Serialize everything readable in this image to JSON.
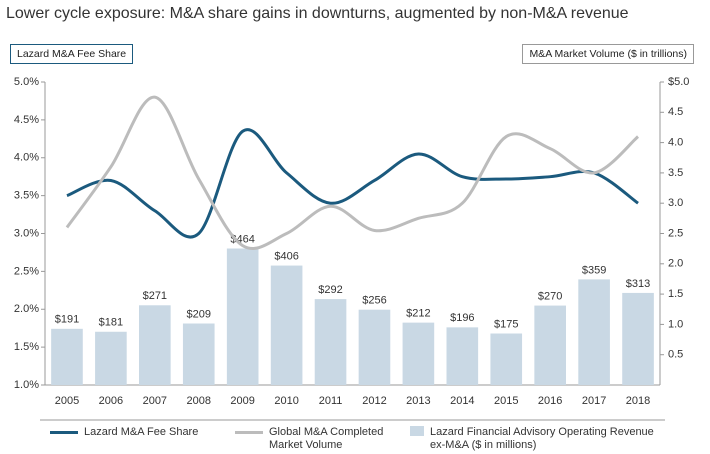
{
  "chart_data": {
    "type": "combo",
    "title": "Lower cycle exposure: M&A share gains in downturns, augmented by non-M&A revenue",
    "left_axis_box": "Lazard M&A Fee Share",
    "right_axis_box": "M&A Market Volume ($ in trillions)",
    "categories": [
      "2005",
      "2006",
      "2007",
      "2008",
      "2009",
      "2010",
      "2011",
      "2012",
      "2013",
      "2014",
      "2015",
      "2016",
      "2017",
      "2018"
    ],
    "ylim": [
      1.0,
      5.0
    ],
    "yticks": [
      {
        "value": 1.0,
        "label": "1.0%"
      },
      {
        "value": 1.5,
        "label": "1.5%"
      },
      {
        "value": 2.0,
        "label": "2.0%"
      },
      {
        "value": 2.5,
        "label": "2.5%"
      },
      {
        "value": 3.0,
        "label": "3.0%"
      },
      {
        "value": 3.5,
        "label": "3.5%"
      },
      {
        "value": 4.0,
        "label": "4.0%"
      },
      {
        "value": 4.5,
        "label": "4.5%"
      },
      {
        "value": 5.0,
        "label": "5.0%"
      }
    ],
    "y2lim": [
      0,
      5.0
    ],
    "y2ticks": [
      {
        "value": 0.5,
        "label": "0.5"
      },
      {
        "value": 1.0,
        "label": "1.0"
      },
      {
        "value": 1.5,
        "label": "1.5"
      },
      {
        "value": 2.0,
        "label": "2.0"
      },
      {
        "value": 2.5,
        "label": "2.5"
      },
      {
        "value": 3.0,
        "label": "3.0"
      },
      {
        "value": 3.5,
        "label": "3.5"
      },
      {
        "value": 4.0,
        "label": "4.0"
      },
      {
        "value": 4.5,
        "label": "4.5"
      },
      {
        "value": 5.0,
        "label": "$5.0"
      }
    ],
    "bar_ylim": [
      0,
      1030
    ],
    "series": [
      {
        "name": "Lazard Financial Advisory Operating Revenue ex-M&A ($ in millions)",
        "kind": "bar",
        "axis": "bar",
        "color": "#c9d8e4",
        "values": [
          191,
          181,
          271,
          209,
          464,
          406,
          292,
          256,
          212,
          196,
          175,
          270,
          359,
          313
        ],
        "value_labels": [
          "$191",
          "$181",
          "$271",
          "$209",
          "$464",
          "$406",
          "$292",
          "$256",
          "$212",
          "$196",
          "$175",
          "$270",
          "$359",
          "$313"
        ]
      },
      {
        "name": "Lazard M&A Fee Share",
        "kind": "line",
        "axis": "y",
        "color": "#1b5a7e",
        "values": [
          3.5,
          3.7,
          3.3,
          3.0,
          4.35,
          3.8,
          3.4,
          3.7,
          4.05,
          3.75,
          3.72,
          3.75,
          3.8,
          3.4
        ]
      },
      {
        "name": "Global M&A Completed Market Volume",
        "kind": "line",
        "axis": "y2",
        "color": "#bcbcbc",
        "values": [
          2.6,
          3.6,
          4.75,
          3.4,
          2.3,
          2.5,
          2.95,
          2.55,
          2.75,
          3.0,
          4.1,
          3.9,
          3.5,
          4.1
        ]
      }
    ]
  }
}
